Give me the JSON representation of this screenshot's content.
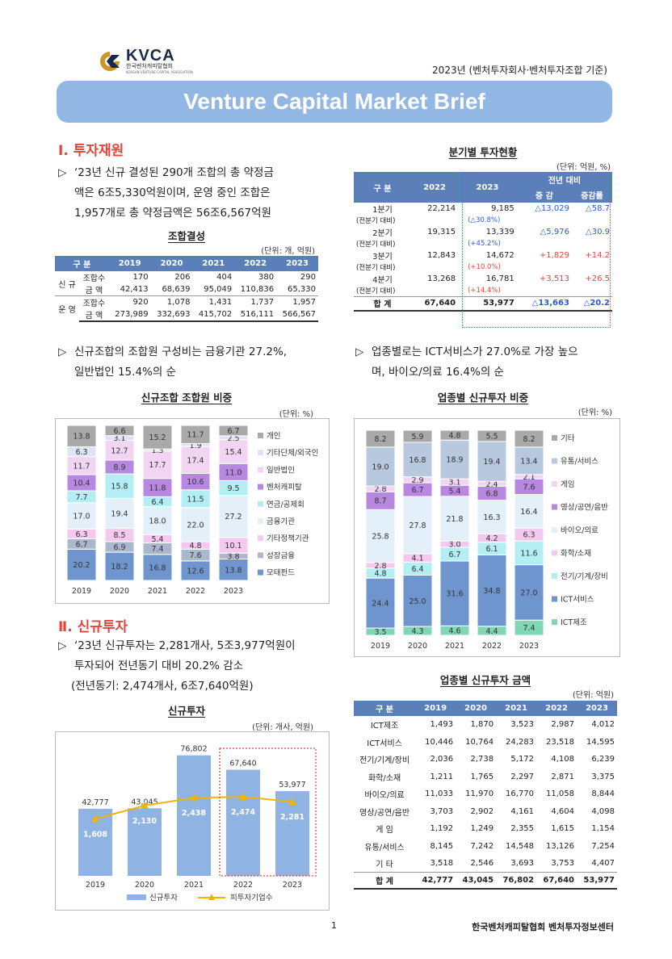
{
  "header": {
    "logo_text": "KVCA",
    "logo_sub": "한국벤처캐피탈협회",
    "logo_tiny": "KOREAN VENTURE CAPITAL ASSOCIATION",
    "year_note": "2023년 (벤처투자회사·벤처투자조합 기준)",
    "banner": "Venture Capital Market Brief"
  },
  "sec1": {
    "title": "Ⅰ. 투자재원",
    "bullet1_l1": "‘23년 신규 결성된 290개 조합의 총 약정금",
    "bullet1_l2": "액은 6조5,330억원이며, 운영 중인 조합은",
    "bullet1_l3": "1,957개로 총 약정금액은 56조6,567억원",
    "bullet2_l1": "신규조합의 조합원 구성비는 금융기관 27.2%,",
    "bullet2_l2": "일반법인 15.4%의 순",
    "bullet3_l1": "업종별로는 ICT서비스가 27.0%로 가장 높으",
    "bullet3_l2": "며, 바이오/의료 16.4%의 순"
  },
  "fund_table": {
    "title": "조합결성",
    "unit": "(단위: 개, 억원)",
    "headers": [
      "구 분",
      "2019",
      "2020",
      "2021",
      "2022",
      "2023"
    ],
    "groups": [
      {
        "name": "신 규",
        "rows": [
          {
            "label": "조합수",
            "values": [
              "170",
              "206",
              "404",
              "380",
              "290"
            ]
          },
          {
            "label": "금 액",
            "values": [
              "42,413",
              "68,639",
              "95,049",
              "110,836",
              "65,330"
            ]
          }
        ]
      },
      {
        "name": "운 영",
        "rows": [
          {
            "label": "조합수",
            "values": [
              "920",
              "1,078",
              "1,431",
              "1,737",
              "1,957"
            ]
          },
          {
            "label": "금 액",
            "values": [
              "273,989",
              "332,693",
              "415,702",
              "516,111",
              "566,567"
            ]
          }
        ]
      }
    ]
  },
  "quarter_table": {
    "title": "분기별 투자현황",
    "unit": "(단위: 억원, %)",
    "h_group": "구 분",
    "h_2022": "2022",
    "h_2023": "2023",
    "h_yoy": "전년 대비",
    "h_change": "증 감",
    "h_rate": "증감률",
    "rows": [
      {
        "label": "1분기",
        "sub": "(전분기 대비)",
        "v2022": "22,214",
        "v2023": "9,185",
        "qoq": "(△30.8%)",
        "change": "△13,029",
        "rate": "△58.7",
        "neg": true
      },
      {
        "label": "2분기",
        "sub": "(전분기 대비)",
        "v2022": "19,315",
        "v2023": "13,339",
        "qoq": "(+45.2%)",
        "change": "△5,976",
        "rate": "△30.9",
        "neg": true
      },
      {
        "label": "3분기",
        "sub": "(전분기 대비)",
        "v2022": "12,843",
        "v2023": "14,672",
        "qoq": "(+10.0%)",
        "change": "+1,829",
        "rate": "+14.2",
        "neg": false
      },
      {
        "label": "4분기",
        "sub": "(전분기 대비)",
        "v2022": "13,268",
        "v2023": "16,781",
        "qoq": "(+14.4%)",
        "change": "+3,513",
        "rate": "+26.5",
        "neg": false
      }
    ],
    "total": {
      "label": "합 계",
      "v2022": "67,640",
      "v2023": "53,977",
      "change": "△13,663",
      "rate": "△20.2"
    }
  },
  "member_chart_text": {
    "title": "신규조합 조합원 비중",
    "unit": "(단위: %)"
  },
  "industry_chart_text": {
    "title": "업종별 신규투자 비중",
    "unit": "(단위: %)"
  },
  "sec2": {
    "title": "Ⅱ. 신규투자",
    "bullet1_l1": "‘23년 신규투자는 2,281개사, 5조3,977억원이",
    "bullet1_l2": "투자되어 전년동기 대비 20.2% 감소",
    "bullet1_l3": "(전년동기: 2,474개사, 6조7,640억원)"
  },
  "invest_chart_text": {
    "title": "신규투자",
    "unit": "(단위: 개사, 억원)"
  },
  "industry_table": {
    "title": "업종별 신규투자 금액",
    "unit": "(단위: 억원)",
    "headers": [
      "구 분",
      "2019",
      "2020",
      "2021",
      "2022",
      "2023"
    ],
    "rows": [
      {
        "label": "ICT제조",
        "values": [
          "1,493",
          "1,870",
          "3,523",
          "2,987",
          "4,012"
        ]
      },
      {
        "label": "ICT서비스",
        "values": [
          "10,446",
          "10,764",
          "24,283",
          "23,518",
          "14,595"
        ]
      },
      {
        "label": "전기/기계/장비",
        "values": [
          "2,036",
          "2,738",
          "5,172",
          "4,108",
          "6,239"
        ]
      },
      {
        "label": "화학/소재",
        "values": [
          "1,211",
          "1,765",
          "2,297",
          "2,871",
          "3,375"
        ]
      },
      {
        "label": "바이오/의료",
        "values": [
          "11,033",
          "11,970",
          "16,770",
          "11,058",
          "8,844"
        ]
      },
      {
        "label": "영상/공연/음반",
        "values": [
          "3,703",
          "2,902",
          "4,161",
          "4,604",
          "4,098"
        ]
      },
      {
        "label": "게 임",
        "values": [
          "1,192",
          "1,249",
          "2,355",
          "1,615",
          "1,154"
        ]
      },
      {
        "label": "유통/서비스",
        "values": [
          "8,145",
          "7,242",
          "14,548",
          "13,126",
          "7,254"
        ]
      },
      {
        "label": "기 타",
        "values": [
          "3,518",
          "2,546",
          "3,693",
          "3,753",
          "4,407"
        ]
      }
    ],
    "total": {
      "label": "합 계",
      "values": [
        "42,777",
        "43,045",
        "76,802",
        "67,640",
        "53,977"
      ]
    }
  },
  "footer": {
    "page": "1",
    "org": "한국벤처캐피탈협회 벤처투자정보센터"
  },
  "chart_data": [
    {
      "type": "bar",
      "stacked": true,
      "title": "신규조합 조합원 비중",
      "categories": [
        "2019",
        "2020",
        "2021",
        "2022",
        "2023"
      ],
      "ylim": [
        0,
        100
      ],
      "series": [
        {
          "name": "모태펀드",
          "color": "#6f95cf",
          "values": [
            20.2,
            18.2,
            16.8,
            12.6,
            13.8
          ]
        },
        {
          "name": "성장금융",
          "color": "#a9b8cc",
          "values": [
            6.7,
            6.9,
            7.4,
            7.6,
            3.8
          ]
        },
        {
          "name": "기타정책기관",
          "color": "#f5c9ef",
          "values": [
            6.3,
            8.5,
            5.4,
            4.8,
            10.1
          ]
        },
        {
          "name": "금융기관",
          "color": "#e3f0f9",
          "values": [
            17.0,
            19.4,
            18.0,
            22.0,
            27.2
          ]
        },
        {
          "name": "연금/공제회",
          "color": "#b2eef4",
          "values": [
            7.7,
            15.8,
            6.4,
            11.5,
            9.5
          ]
        },
        {
          "name": "벤처캐피탈",
          "color": "#b887e0",
          "values": [
            10.4,
            8.9,
            11.8,
            10.6,
            11.0
          ]
        },
        {
          "name": "일반법인",
          "color": "#f2d5f2",
          "values": [
            11.7,
            12.7,
            17.7,
            17.4,
            15.4
          ]
        },
        {
          "name": "기타단체/외국인",
          "color": "#dde4f5",
          "values": [
            6.3,
            3.1,
            1.3,
            1.9,
            2.5
          ]
        },
        {
          "name": "개인",
          "color": "#a9a9a9",
          "values": [
            13.8,
            6.6,
            15.2,
            11.7,
            6.7
          ]
        }
      ]
    },
    {
      "type": "bar",
      "stacked": true,
      "title": "업종별 신규투자 비중",
      "categories": [
        "2019",
        "2020",
        "2021",
        "2022",
        "2023"
      ],
      "ylim": [
        0,
        100
      ],
      "series": [
        {
          "name": "ICT제조",
          "color": "#7fd7b6",
          "values": [
            3.5,
            4.3,
            4.6,
            4.4,
            7.4
          ]
        },
        {
          "name": "ICT서비스",
          "color": "#6f95cf",
          "values": [
            24.4,
            25.0,
            31.6,
            34.8,
            27.0
          ]
        },
        {
          "name": "전기/기계/장비",
          "color": "#b2eef4",
          "values": [
            4.8,
            6.4,
            6.7,
            6.1,
            11.6
          ]
        },
        {
          "name": "화학/소재",
          "color": "#f5c9ef",
          "values": [
            2.8,
            4.1,
            3.0,
            4.2,
            6.3
          ]
        },
        {
          "name": "바이오/의료",
          "color": "#e3f0f9",
          "values": [
            25.8,
            27.8,
            21.8,
            16.3,
            16.4
          ]
        },
        {
          "name": "영상/공연/음반",
          "color": "#b887e0",
          "values": [
            8.7,
            6.7,
            5.4,
            6.8,
            7.6
          ]
        },
        {
          "name": "게임",
          "color": "#f2d5f2",
          "values": [
            2.8,
            2.9,
            3.1,
            2.4,
            2.1
          ]
        },
        {
          "name": "유통/서비스",
          "color": "#b8c9df",
          "values": [
            19.0,
            16.8,
            18.9,
            19.4,
            13.4
          ]
        },
        {
          "name": "기타",
          "color": "#a9a9a9",
          "values": [
            8.2,
            5.9,
            4.8,
            5.5,
            8.2
          ]
        }
      ]
    },
    {
      "type": "bar",
      "title": "신규투자",
      "categories": [
        "2019",
        "2020",
        "2021",
        "2022",
        "2023"
      ],
      "series": [
        {
          "name": "신규투자",
          "color": "#8fb3e2",
          "values": [
            42777,
            43045,
            76802,
            67640,
            53977
          ],
          "labels": [
            "42,777",
            "43,045",
            "76,802",
            "67,640",
            "53,977"
          ]
        },
        {
          "name": "피투자기업수",
          "type": "line",
          "color": "#f0b400",
          "values": [
            1608,
            2130,
            2438,
            2474,
            2281
          ],
          "labels": [
            "1,608",
            "2,130",
            "2,438",
            "2,474",
            "2,281"
          ]
        }
      ],
      "highlight": "2022-2023"
    }
  ]
}
